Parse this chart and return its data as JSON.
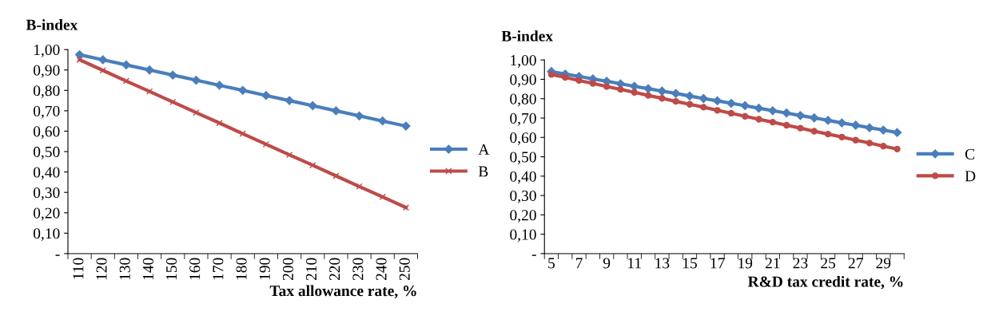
{
  "chart_data": [
    {
      "type": "line",
      "ylabel": "B-index",
      "xlabel": "Tax allowance rate, %",
      "categories": [
        "110",
        "120",
        "130",
        "140",
        "150",
        "160",
        "170",
        "180",
        "190",
        "200",
        "210",
        "220",
        "230",
        "240",
        "250"
      ],
      "series": [
        {
          "name": "A",
          "color": "#4a7ebb",
          "marker": "diamond",
          "values": [
            0.975,
            0.95,
            0.925,
            0.9,
            0.875,
            0.85,
            0.825,
            0.8,
            0.775,
            0.75,
            0.725,
            0.7,
            0.675,
            0.65,
            0.625
          ]
        },
        {
          "name": "B",
          "color": "#be4b48",
          "marker": "cross",
          "values": [
            0.95,
            0.898,
            0.846,
            0.795,
            0.743,
            0.691,
            0.64,
            0.588,
            0.536,
            0.484,
            0.433,
            0.381,
            0.329,
            0.278,
            0.226
          ]
        }
      ],
      "ylim": [
        0,
        1
      ],
      "yticks": [
        {
          "value": 0,
          "label": "-"
        },
        {
          "value": 0.1,
          "label": "0,10"
        },
        {
          "value": 0.2,
          "label": "0,20"
        },
        {
          "value": 0.3,
          "label": "0,30"
        },
        {
          "value": 0.4,
          "label": "0,40"
        },
        {
          "value": 0.5,
          "label": "0,50"
        },
        {
          "value": 0.6,
          "label": "0,60"
        },
        {
          "value": 0.7,
          "label": "0,70"
        },
        {
          "value": 0.8,
          "label": "0,80"
        },
        {
          "value": 0.9,
          "label": "0,90"
        },
        {
          "value": 1,
          "label": "1,00"
        }
      ],
      "grid": false,
      "legend": "right",
      "line_style": "solid"
    },
    {
      "type": "line",
      "ylabel": "B-index",
      "xlabel": "R&D tax credit rate, %",
      "categories": [
        "5",
        null,
        "7",
        null,
        "9",
        null,
        "11",
        null,
        "13",
        null,
        "15",
        null,
        "17",
        null,
        "19",
        null,
        "21",
        null,
        "23",
        null,
        "25",
        null,
        "27",
        null,
        "29",
        null
      ],
      "series": [
        {
          "name": "C",
          "color": "#4a7ebb",
          "marker": "diamond",
          "values": [
            0.94,
            0.927,
            0.915,
            0.902,
            0.89,
            0.877,
            0.864,
            0.852,
            0.839,
            0.827,
            0.814,
            0.801,
            0.789,
            0.776,
            0.764,
            0.751,
            0.738,
            0.726,
            0.713,
            0.701,
            0.688,
            0.675,
            0.663,
            0.65,
            0.638,
            0.625
          ]
        },
        {
          "name": "D",
          "color": "#be4b48",
          "marker": "circle",
          "values": [
            0.925,
            0.91,
            0.894,
            0.879,
            0.863,
            0.848,
            0.833,
            0.817,
            0.802,
            0.786,
            0.771,
            0.756,
            0.74,
            0.725,
            0.709,
            0.694,
            0.679,
            0.663,
            0.648,
            0.632,
            0.617,
            0.602,
            0.586,
            0.571,
            0.555,
            0.54
          ]
        }
      ],
      "ylim": [
        0,
        1
      ],
      "yticks": [
        {
          "value": 0,
          "label": "-"
        },
        {
          "value": 0.1,
          "label": "0,10"
        },
        {
          "value": 0.2,
          "label": "0,20"
        },
        {
          "value": 0.3,
          "label": "0,30"
        },
        {
          "value": 0.4,
          "label": "0,40"
        },
        {
          "value": 0.5,
          "label": "0,50"
        },
        {
          "value": 0.6,
          "label": "0,60"
        },
        {
          "value": 0.7,
          "label": "0,70"
        },
        {
          "value": 0.8,
          "label": "0,80"
        },
        {
          "value": 0.9,
          "label": "0,90"
        },
        {
          "value": 1,
          "label": "1,00"
        }
      ],
      "grid": false,
      "legend": "right",
      "line_style": "solid"
    }
  ]
}
